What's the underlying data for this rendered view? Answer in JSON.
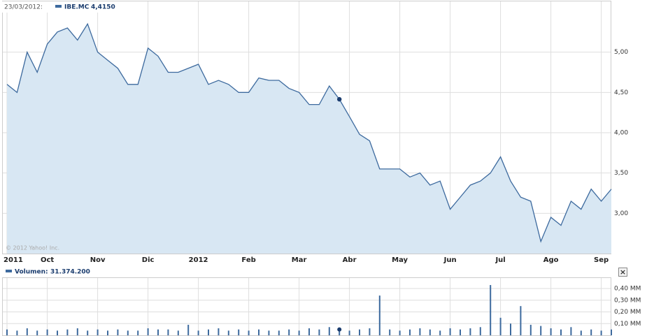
{
  "chart_data": {
    "type": "area",
    "marker_date": "23/03/2012:",
    "marker_label": "4,4150",
    "marker_index": 33,
    "volume_total_label": "31.374.200",
    "copyright": "© 2012 Yahoo! Inc.",
    "close_button": "×",
    "categories": [
      "2011",
      null,
      null,
      null,
      "Oct",
      null,
      null,
      null,
      null,
      "Nov",
      null,
      null,
      null,
      null,
      "Dic",
      null,
      null,
      null,
      null,
      "2012",
      null,
      null,
      null,
      null,
      "Feb",
      null,
      null,
      null,
      null,
      "Mar",
      null,
      null,
      null,
      null,
      "Abr",
      null,
      null,
      null,
      null,
      "May",
      null,
      null,
      null,
      null,
      "Jun",
      null,
      null,
      null,
      null,
      "Jul",
      null,
      null,
      null,
      null,
      "Ago",
      null,
      null,
      null,
      null,
      "Sep",
      null
    ],
    "series": [
      {
        "name": "IBE.MC",
        "color": "#3d6a9e",
        "fill": "#d8e7f3",
        "values": [
          4.6,
          4.5,
          5.0,
          4.75,
          5.1,
          5.25,
          5.3,
          5.15,
          5.35,
          5.0,
          4.9,
          4.8,
          4.6,
          4.6,
          5.05,
          4.95,
          4.75,
          4.75,
          4.8,
          4.85,
          4.6,
          4.65,
          4.6,
          4.5,
          4.5,
          4.68,
          4.65,
          4.65,
          4.55,
          4.5,
          4.35,
          4.35,
          4.58,
          4.415,
          4.2,
          3.98,
          3.9,
          3.55,
          3.55,
          3.55,
          3.45,
          3.5,
          3.35,
          3.4,
          3.05,
          3.2,
          3.35,
          3.4,
          3.5,
          3.7,
          3.4,
          3.2,
          3.15,
          2.65,
          2.95,
          2.85,
          3.15,
          3.05,
          3.3,
          3.15,
          3.3
        ]
      },
      {
        "name": "Volumen:",
        "color": "#3d6a9e",
        "axis": "y2",
        "values": [
          0.05,
          0.04,
          0.06,
          0.04,
          0.05,
          0.04,
          0.05,
          0.06,
          0.04,
          0.05,
          0.04,
          0.05,
          0.04,
          0.04,
          0.06,
          0.05,
          0.05,
          0.04,
          0.09,
          0.04,
          0.05,
          0.06,
          0.04,
          0.05,
          0.04,
          0.05,
          0.04,
          0.04,
          0.05,
          0.04,
          0.06,
          0.05,
          0.07,
          0.05,
          0.04,
          0.05,
          0.06,
          0.34,
          0.05,
          0.04,
          0.05,
          0.06,
          0.05,
          0.04,
          0.06,
          0.05,
          0.06,
          0.07,
          0.43,
          0.15,
          0.1,
          0.25,
          0.09,
          0.08,
          0.06,
          0.05,
          0.07,
          0.04,
          0.05,
          0.04,
          0.05
        ]
      }
    ],
    "ylim": [
      2.5,
      5.63
    ],
    "yticks": [
      {
        "value": 3,
        "label": "3,00"
      },
      {
        "value": 3.5,
        "label": "3,50"
      },
      {
        "value": 4,
        "label": "4,00"
      },
      {
        "value": 4.5,
        "label": "4,50"
      },
      {
        "value": 5,
        "label": "5,00"
      }
    ],
    "y2lim": [
      0,
      0.49
    ],
    "y2ticks": [
      {
        "value": 0.1,
        "label": "0,10 MM"
      },
      {
        "value": 0.2,
        "label": "0,20 MM"
      },
      {
        "value": 0.3,
        "label": "0,30 MM"
      },
      {
        "value": 0.4,
        "label": "0,40 MM"
      }
    ],
    "grid": true
  }
}
